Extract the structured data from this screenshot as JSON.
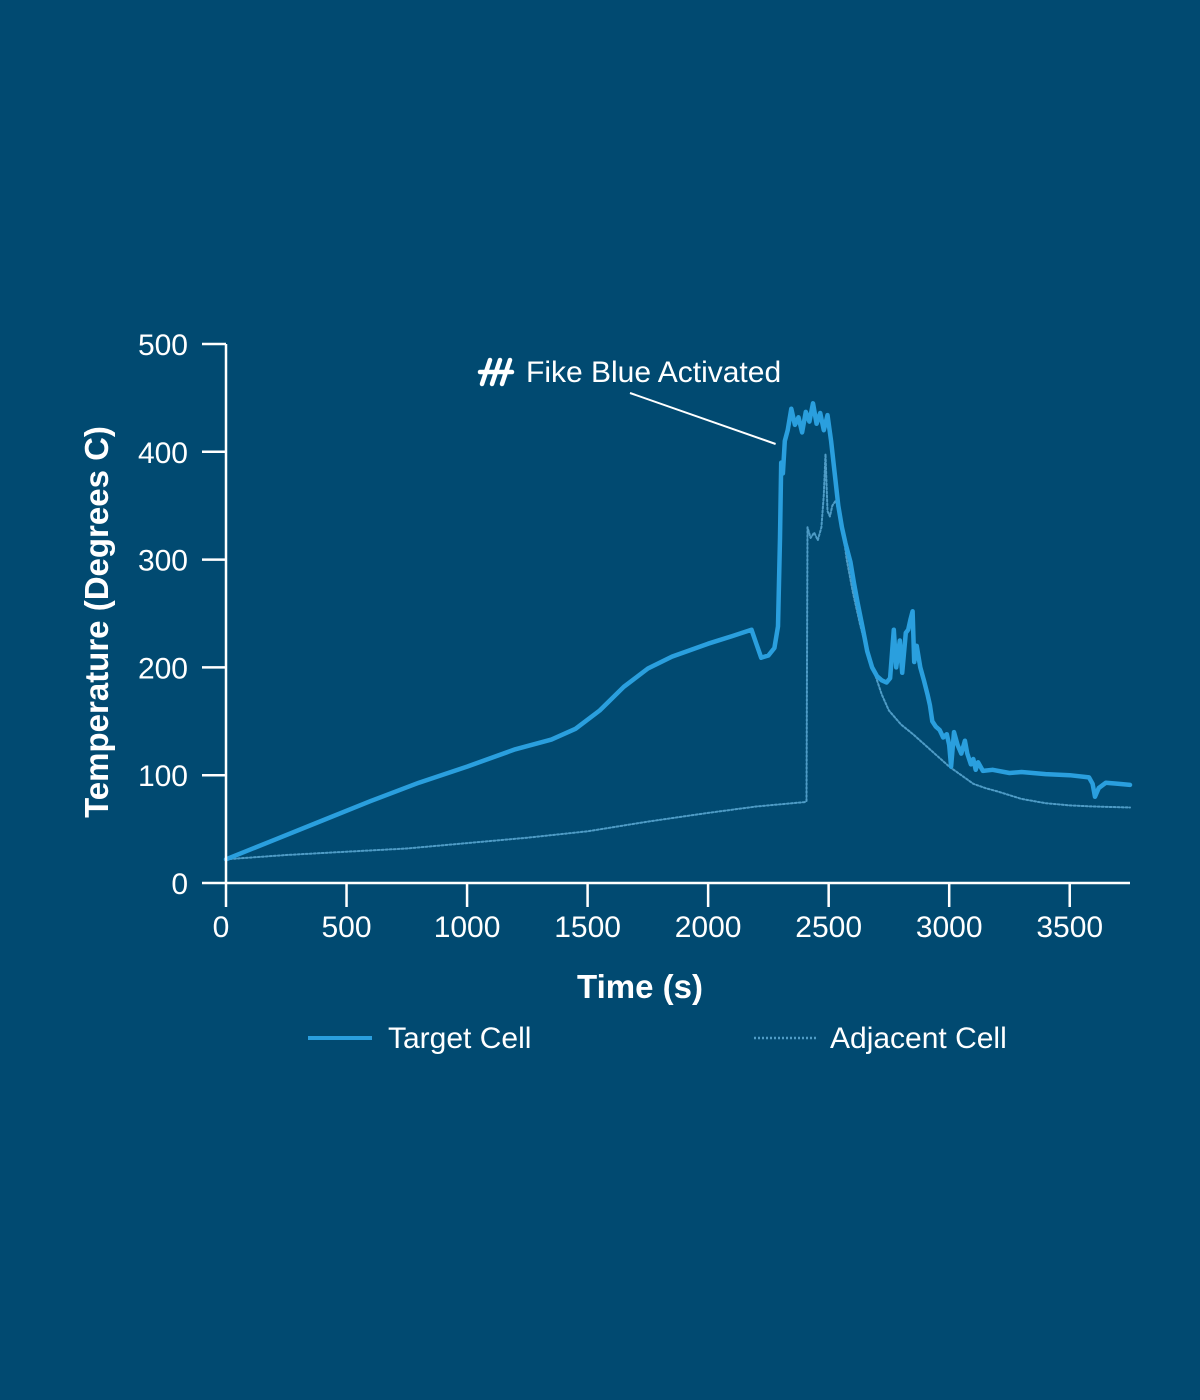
{
  "colors": {
    "background": "#014a71",
    "axis": "#ffffff",
    "text": "#ffffff",
    "target_series": "#2a9fde",
    "adjacent_series": "#4f9cc6"
  },
  "chart_data": {
    "type": "line",
    "xlabel": "Time (s)",
    "ylabel": "Temperature (Degrees C)",
    "xlim": [
      0,
      3750
    ],
    "ylim": [
      0,
      500
    ],
    "xticks": [
      0,
      500,
      1000,
      1500,
      2000,
      2500,
      3000,
      3500
    ],
    "yticks": [
      0,
      100,
      200,
      300,
      400,
      500
    ],
    "grid": false,
    "legend_position": "bottom",
    "annotation": {
      "text": "Fike Blue Activated",
      "icon": "fike-logo-icon",
      "point": [
        2280,
        410
      ]
    },
    "series": [
      {
        "name": "Target Cell",
        "style": "solid",
        "points": [
          [
            0,
            22
          ],
          [
            200,
            40
          ],
          [
            400,
            58
          ],
          [
            600,
            76
          ],
          [
            800,
            93
          ],
          [
            1000,
            108
          ],
          [
            1200,
            124
          ],
          [
            1350,
            133
          ],
          [
            1450,
            143
          ],
          [
            1550,
            160
          ],
          [
            1650,
            182
          ],
          [
            1750,
            199
          ],
          [
            1850,
            210
          ],
          [
            2000,
            222
          ],
          [
            2100,
            229
          ],
          [
            2180,
            235
          ],
          [
            2200,
            222
          ],
          [
            2220,
            209
          ],
          [
            2250,
            211
          ],
          [
            2275,
            218
          ],
          [
            2290,
            238
          ],
          [
            2298,
            320
          ],
          [
            2303,
            390
          ],
          [
            2310,
            380
          ],
          [
            2318,
            410
          ],
          [
            2330,
            420
          ],
          [
            2345,
            440
          ],
          [
            2360,
            425
          ],
          [
            2375,
            432
          ],
          [
            2390,
            418
          ],
          [
            2405,
            437
          ],
          [
            2420,
            428
          ],
          [
            2435,
            445
          ],
          [
            2450,
            426
          ],
          [
            2465,
            436
          ],
          [
            2480,
            420
          ],
          [
            2495,
            434
          ],
          [
            2510,
            410
          ],
          [
            2525,
            380
          ],
          [
            2540,
            350
          ],
          [
            2555,
            330
          ],
          [
            2570,
            315
          ],
          [
            2590,
            298
          ],
          [
            2605,
            278
          ],
          [
            2620,
            260
          ],
          [
            2640,
            238
          ],
          [
            2660,
            215
          ],
          [
            2680,
            200
          ],
          [
            2700,
            192
          ],
          [
            2720,
            188
          ],
          [
            2740,
            186
          ],
          [
            2755,
            190
          ],
          [
            2770,
            235
          ],
          [
            2780,
            200
          ],
          [
            2795,
            225
          ],
          [
            2805,
            195
          ],
          [
            2820,
            232
          ],
          [
            2830,
            235
          ],
          [
            2840,
            245
          ],
          [
            2848,
            252
          ],
          [
            2855,
            205
          ],
          [
            2865,
            220
          ],
          [
            2880,
            200
          ],
          [
            2895,
            188
          ],
          [
            2910,
            175
          ],
          [
            2920,
            165
          ],
          [
            2930,
            150
          ],
          [
            2945,
            145
          ],
          [
            2960,
            142
          ],
          [
            2975,
            135
          ],
          [
            2990,
            138
          ],
          [
            3000,
            128
          ],
          [
            3008,
            108
          ],
          [
            3020,
            140
          ],
          [
            3035,
            128
          ],
          [
            3050,
            120
          ],
          [
            3065,
            132
          ],
          [
            3075,
            120
          ],
          [
            3090,
            110
          ],
          [
            3100,
            115
          ],
          [
            3110,
            105
          ],
          [
            3120,
            112
          ],
          [
            3140,
            104
          ],
          [
            3180,
            105
          ],
          [
            3250,
            102
          ],
          [
            3300,
            103
          ],
          [
            3400,
            101
          ],
          [
            3500,
            100
          ],
          [
            3580,
            98
          ],
          [
            3595,
            92
          ],
          [
            3605,
            80
          ],
          [
            3620,
            88
          ],
          [
            3650,
            93
          ],
          [
            3700,
            92
          ],
          [
            3750,
            91
          ]
        ]
      },
      {
        "name": "Adjacent Cell",
        "style": "dotted",
        "points": [
          [
            0,
            22
          ],
          [
            250,
            26
          ],
          [
            500,
            29
          ],
          [
            750,
            32
          ],
          [
            1000,
            37
          ],
          [
            1250,
            42
          ],
          [
            1500,
            48
          ],
          [
            1750,
            57
          ],
          [
            2000,
            65
          ],
          [
            2200,
            71
          ],
          [
            2400,
            75
          ],
          [
            2408,
            76
          ],
          [
            2412,
            330
          ],
          [
            2425,
            320
          ],
          [
            2440,
            325
          ],
          [
            2455,
            318
          ],
          [
            2470,
            330
          ],
          [
            2480,
            360
          ],
          [
            2487,
            398
          ],
          [
            2495,
            345
          ],
          [
            2505,
            340
          ],
          [
            2515,
            350
          ],
          [
            2530,
            355
          ],
          [
            2545,
            340
          ],
          [
            2560,
            325
          ],
          [
            2575,
            300
          ],
          [
            2600,
            270
          ],
          [
            2630,
            240
          ],
          [
            2660,
            215
          ],
          [
            2690,
            195
          ],
          [
            2720,
            175
          ],
          [
            2750,
            160
          ],
          [
            2800,
            147
          ],
          [
            2850,
            138
          ],
          [
            2900,
            128
          ],
          [
            2950,
            118
          ],
          [
            3000,
            108
          ],
          [
            3050,
            100
          ],
          [
            3100,
            92
          ],
          [
            3150,
            88
          ],
          [
            3200,
            85
          ],
          [
            3300,
            78
          ],
          [
            3400,
            74
          ],
          [
            3500,
            72
          ],
          [
            3600,
            71
          ],
          [
            3750,
            70
          ]
        ]
      }
    ]
  }
}
